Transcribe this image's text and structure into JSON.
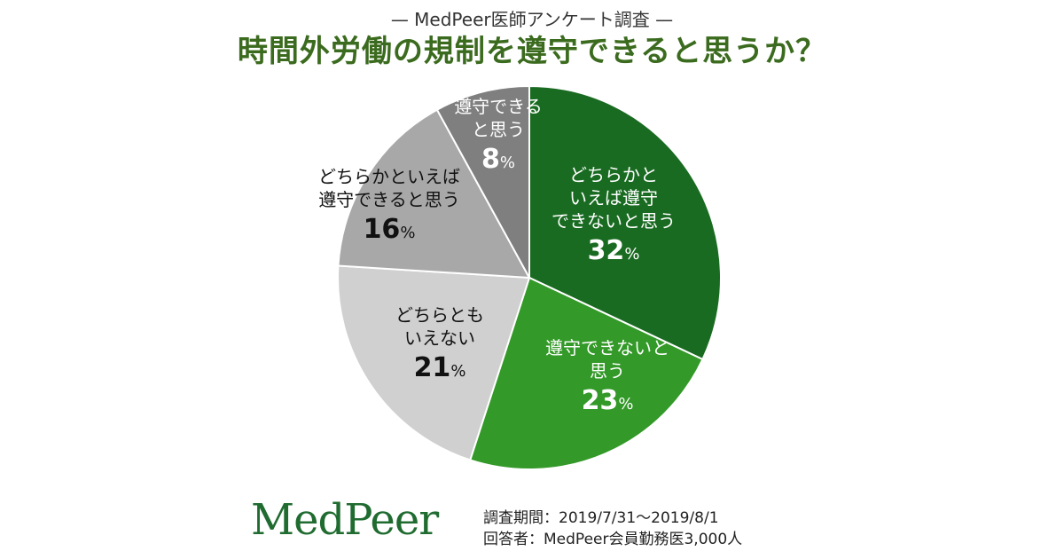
{
  "header": {
    "subtitle": "— MedPeer医師アンケート調査 —",
    "title": "時間外労働の規制を遵守できると思うか？"
  },
  "chart_data": {
    "type": "pie",
    "title": "時間外労働の規制を遵守できると思うか？",
    "start": "top",
    "direction": "clockwise",
    "slices": [
      {
        "lines": [
          "どちらかと",
          "いえば遵守",
          "できないと思う"
        ],
        "value": 32,
        "display": "32",
        "unit": "%",
        "color": "#1a6b22",
        "text_color": "#ffffff"
      },
      {
        "lines": [
          "遵守できないと",
          "思う"
        ],
        "value": 23,
        "display": "23",
        "unit": "%",
        "color": "#339928",
        "text_color": "#ffffff"
      },
      {
        "lines": [
          "どちらとも",
          "いえない"
        ],
        "value": 21,
        "display": "21",
        "unit": "%",
        "color": "#d0d0d0",
        "text_color": "#111111"
      },
      {
        "lines": [
          "どちらかといえば",
          "遵守できると思う"
        ],
        "value": 16,
        "display": "16",
        "unit": "%",
        "color": "#a8a8a8",
        "text_color": "#111111"
      },
      {
        "lines": [
          "遵守できる",
          "と思う"
        ],
        "value": 8,
        "display": "8",
        "unit": "%",
        "color": "#7f7f7f",
        "text_color": "#ffffff"
      }
    ]
  },
  "footer": {
    "logo": "MedPeer",
    "period": "調査期間：2019/7/31～2019/8/1",
    "respondents": "回答者：MedPeer会員勤務医3,000人"
  }
}
